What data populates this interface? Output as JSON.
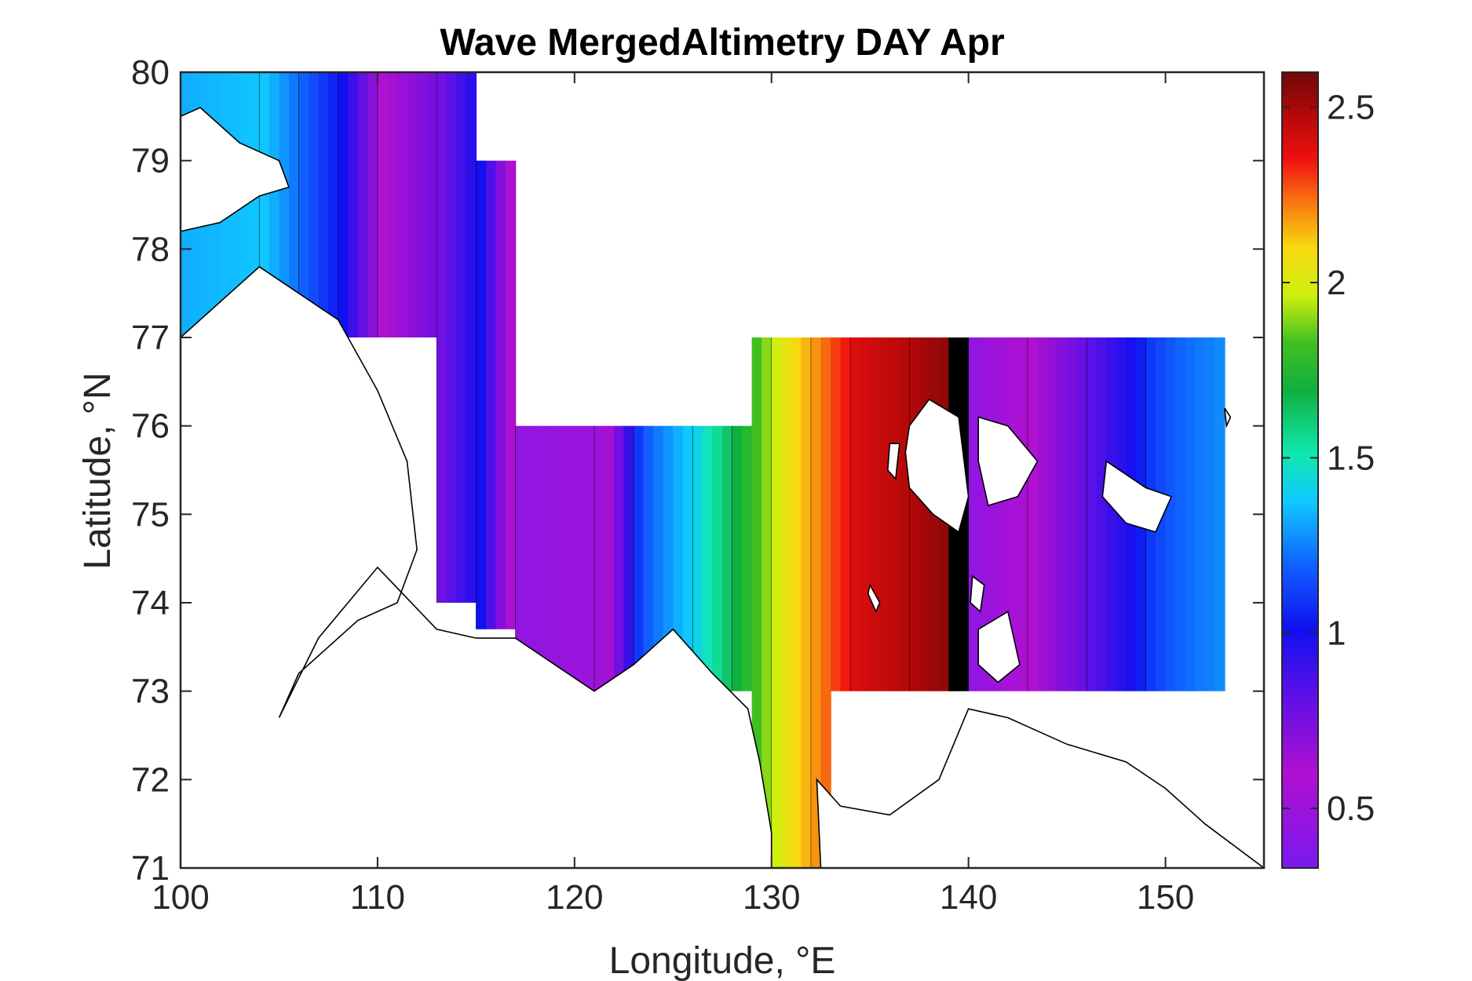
{
  "chart_data": {
    "type": "heatmap",
    "title": "Wave MergedAltimetry DAY Apr",
    "xlabel": "Longitude, °E",
    "ylabel": "Latitude, °N",
    "xlim": [
      100,
      155
    ],
    "ylim": [
      71,
      80
    ],
    "xticks": [
      100,
      110,
      120,
      130,
      140,
      150
    ],
    "yticks": [
      71,
      72,
      73,
      74,
      75,
      76,
      77,
      78,
      79,
      80
    ],
    "colorbar": {
      "range": [
        0.33,
        2.6
      ],
      "ticks": [
        0.5,
        1,
        1.5,
        2,
        2.5
      ],
      "colormap": "jet-like (purple-blue-cyan-green-yellow-red-darkred)"
    },
    "wave_height_by_longitude": [
      {
        "lon": 100,
        "value": 1.2
      },
      {
        "lon": 104,
        "value": 1.25
      },
      {
        "lon": 106,
        "value": 1.05
      },
      {
        "lon": 108,
        "value": 0.95
      },
      {
        "lon": 110,
        "value": 0.6
      },
      {
        "lon": 113,
        "value": 0.75
      },
      {
        "lon": 115,
        "value": 0.95
      },
      {
        "lon": 117,
        "value": 0.45
      },
      {
        "lon": 121,
        "value": 0.5
      },
      {
        "lon": 123,
        "value": 1.0
      },
      {
        "lon": 126,
        "value": 1.3
      },
      {
        "lon": 128,
        "value": 1.6
      },
      {
        "lon": 130,
        "value": 1.9
      },
      {
        "lon": 132,
        "value": 2.1
      },
      {
        "lon": 134,
        "value": 2.35
      },
      {
        "lon": 137,
        "value": 2.45
      },
      {
        "lon": 139,
        "value": 2.55
      },
      {
        "lon": 140,
        "value": 0.45
      },
      {
        "lon": 143,
        "value": 0.6
      },
      {
        "lon": 146,
        "value": 0.8
      },
      {
        "lon": 149,
        "value": 1.0
      },
      {
        "lon": 153,
        "value": 1.15
      }
    ],
    "annotations": []
  }
}
